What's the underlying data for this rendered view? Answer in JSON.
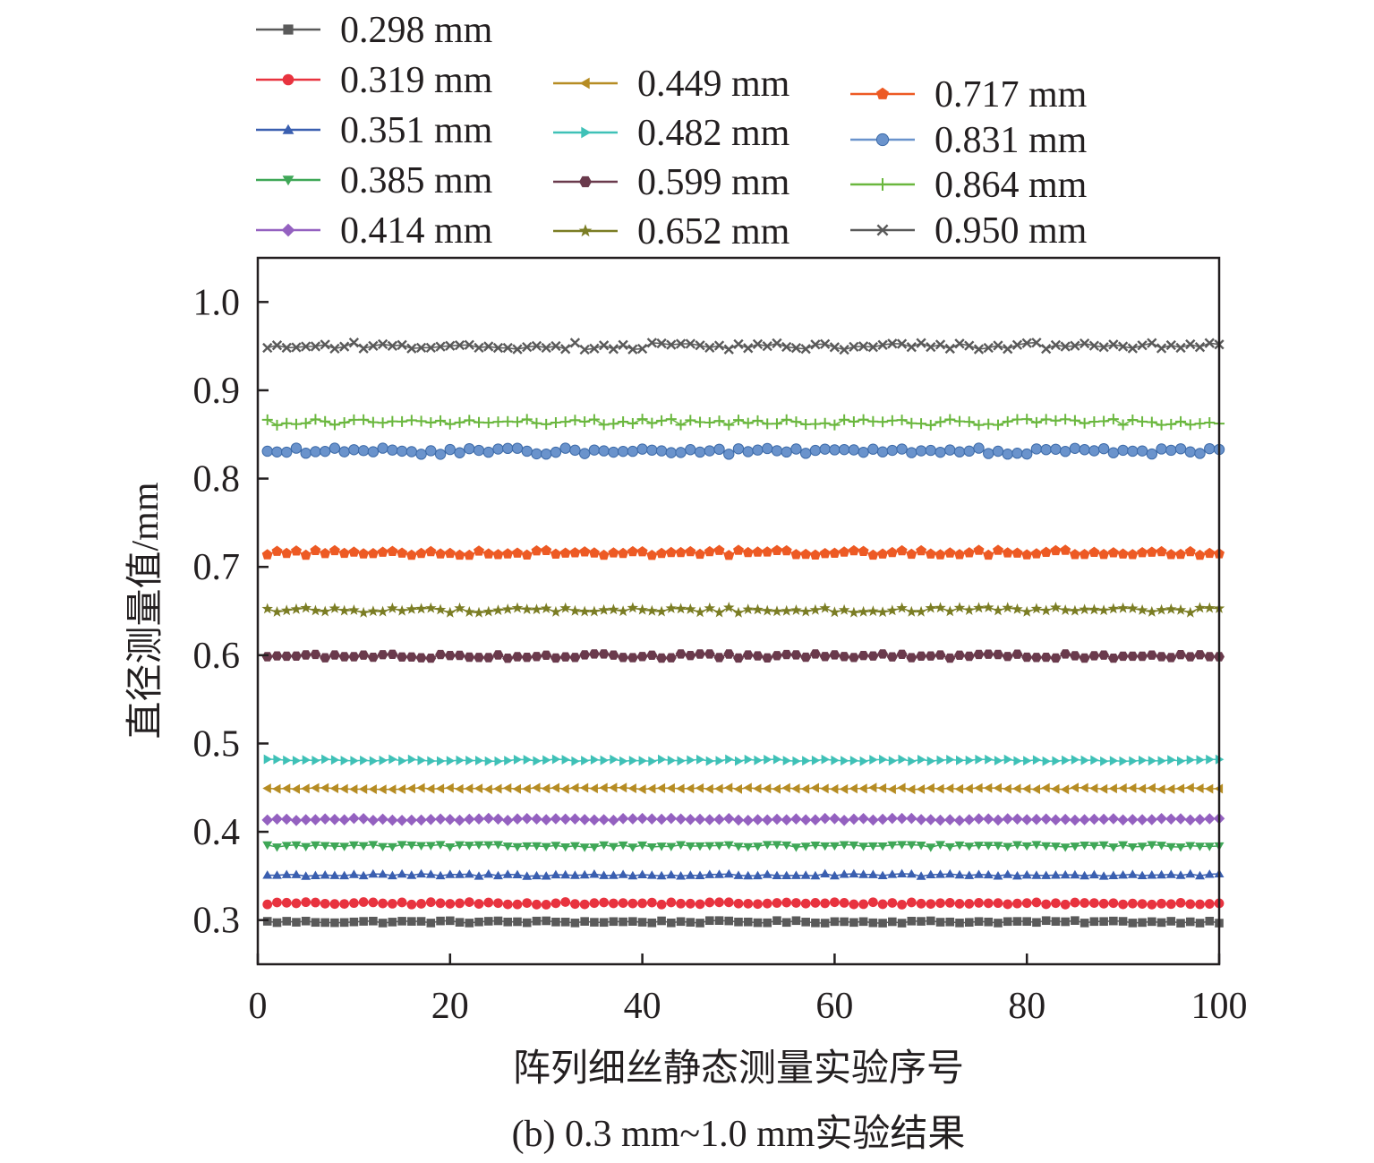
{
  "caption": "(b) 0.3 mm~1.0 mm实验结果",
  "chart_data": {
    "type": "line",
    "title": "",
    "xlabel": "阵列细丝静态测量实验序号",
    "ylabel": "直径测量值/mm",
    "xlim": [
      0,
      100
    ],
    "ylim": [
      0.25,
      1.05
    ],
    "x_ticks": [
      0,
      20,
      40,
      60,
      80,
      100
    ],
    "x_tick_labels": [
      "0",
      "20",
      "40",
      "60",
      "80",
      "100"
    ],
    "y_ticks": [
      0.3,
      0.4,
      0.5,
      0.6,
      0.7,
      0.8,
      0.9,
      1.0
    ],
    "y_tick_labels": [
      "0.3",
      "0.4",
      "0.5",
      "0.6",
      "0.7",
      "0.8",
      "0.9",
      "1.0"
    ],
    "grid": false,
    "legend_position": "top",
    "x": {
      "start": 1,
      "end": 100,
      "step": 1
    },
    "series": [
      {
        "name": "0.298 mm",
        "mean": 0.298,
        "amplitude": 0.0015,
        "color": "#5a5a5a",
        "marker": "square"
      },
      {
        "name": "0.319 mm",
        "mean": 0.319,
        "amplitude": 0.0015,
        "color": "#e8333f",
        "marker": "circle"
      },
      {
        "name": "0.351 mm",
        "mean": 0.351,
        "amplitude": 0.0015,
        "color": "#3a5fb0",
        "marker": "triangle-up"
      },
      {
        "name": "0.385 mm",
        "mean": 0.384,
        "amplitude": 0.0015,
        "color": "#3fa757",
        "marker": "triangle-down"
      },
      {
        "name": "0.414 mm",
        "mean": 0.414,
        "amplitude": 0.0012,
        "color": "#9461c0",
        "marker": "diamond"
      },
      {
        "name": "0.449 mm",
        "mean": 0.449,
        "amplitude": 0.001,
        "color": "#b68c23",
        "marker": "triangle-left"
      },
      {
        "name": "0.482 mm",
        "mean": 0.481,
        "amplitude": 0.0012,
        "color": "#3fc1b7",
        "marker": "triangle-right"
      },
      {
        "name": "0.599 mm",
        "mean": 0.599,
        "amplitude": 0.0025,
        "color": "#6a3a4c",
        "marker": "hexagon"
      },
      {
        "name": "0.652 mm",
        "mean": 0.651,
        "amplitude": 0.003,
        "color": "#7b7d24",
        "marker": "star"
      },
      {
        "name": "0.717 mm",
        "mean": 0.716,
        "amplitude": 0.003,
        "color": "#ed5a24",
        "marker": "pentagon"
      },
      {
        "name": "0.831 mm",
        "mean": 0.831,
        "amplitude": 0.0035,
        "color": "#6a93cc",
        "marker": "sphere"
      },
      {
        "name": "0.864 mm",
        "mean": 0.864,
        "amplitude": 0.0035,
        "color": "#6ab73e",
        "marker": "plus"
      },
      {
        "name": "0.950 mm",
        "mean": 0.95,
        "amplitude": 0.004,
        "color": "#5a5a5a",
        "marker": "x"
      }
    ]
  }
}
